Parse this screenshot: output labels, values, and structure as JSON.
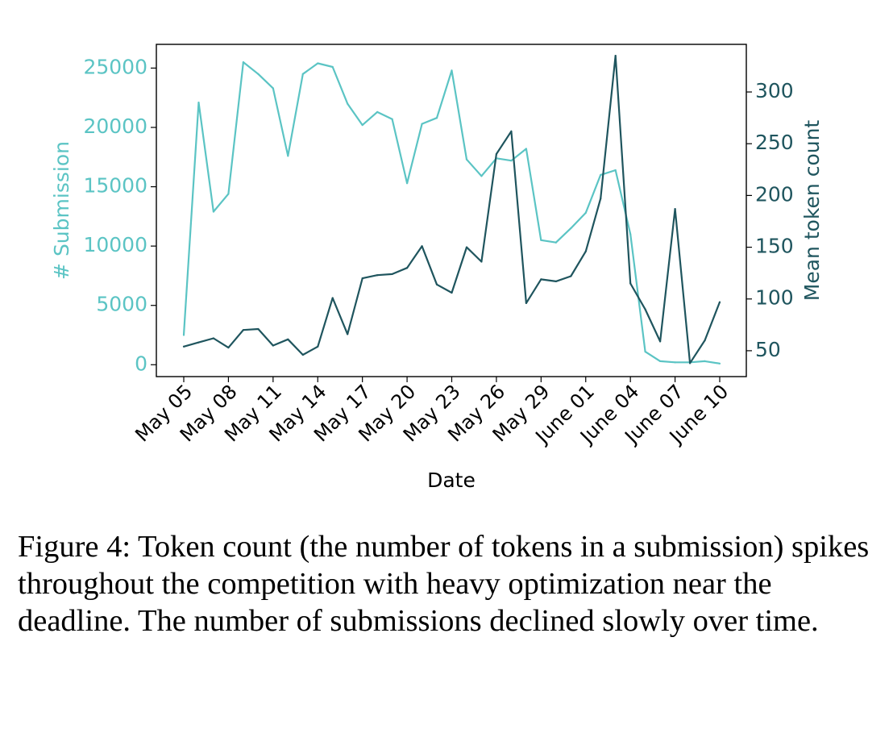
{
  "chart_data": {
    "type": "line",
    "xlabel": "Date",
    "x_ticks": [
      "May 05",
      "May 08",
      "May 11",
      "May 14",
      "May 17",
      "May 20",
      "May 23",
      "May 26",
      "May 29",
      "June 01",
      "June 04",
      "June 07",
      "June 10"
    ],
    "days": [
      "May 05",
      "May 06",
      "May 07",
      "May 08",
      "May 09",
      "May 10",
      "May 11",
      "May 12",
      "May 13",
      "May 14",
      "May 15",
      "May 16",
      "May 17",
      "May 18",
      "May 19",
      "May 20",
      "May 21",
      "May 22",
      "May 23",
      "May 24",
      "May 25",
      "May 26",
      "May 27",
      "May 28",
      "May 29",
      "May 30",
      "May 31",
      "June 01",
      "June 02",
      "June 03",
      "June 04",
      "June 05",
      "June 06",
      "June 07",
      "June 08",
      "June 09",
      "June 10"
    ],
    "left_axis": {
      "label": "# Submission",
      "color": "#5bc4c4",
      "ylim": [
        -1000,
        27000
      ],
      "ticks": [
        0,
        5000,
        10000,
        15000,
        20000,
        25000
      ]
    },
    "right_axis": {
      "label": "Mean token count",
      "color": "#1f555e",
      "ylim": [
        25,
        346
      ],
      "ticks": [
        50,
        100,
        150,
        200,
        250,
        300
      ]
    },
    "series": [
      {
        "name": "# Submission",
        "axis": "left",
        "color": "#5bc4c4",
        "values": [
          2500,
          22100,
          12900,
          14400,
          25500,
          24500,
          23300,
          17600,
          24500,
          25400,
          25100,
          22000,
          20200,
          21300,
          20700,
          15300,
          20300,
          20800,
          24800,
          17300,
          15900,
          17400,
          17200,
          18200,
          10500,
          10300,
          11500,
          12800,
          16000,
          16400,
          11000,
          1100,
          300,
          200,
          200,
          300,
          100
        ]
      },
      {
        "name": "Mean token count",
        "axis": "right",
        "color": "#1f555e",
        "values": [
          54,
          58,
          62,
          53,
          70,
          71,
          55,
          61,
          46,
          54,
          101,
          66,
          120,
          123,
          124,
          130,
          151,
          114,
          106,
          150,
          136,
          240,
          262,
          96,
          119,
          117,
          122,
          146,
          197,
          335,
          115,
          90,
          59,
          187,
          38,
          60,
          97
        ]
      }
    ]
  },
  "caption": "Figure 4: Token count (the number of tokens in a submission) spikes throughout the competition with heavy optimization near the deadline. The number of submissions declined slowly over time."
}
